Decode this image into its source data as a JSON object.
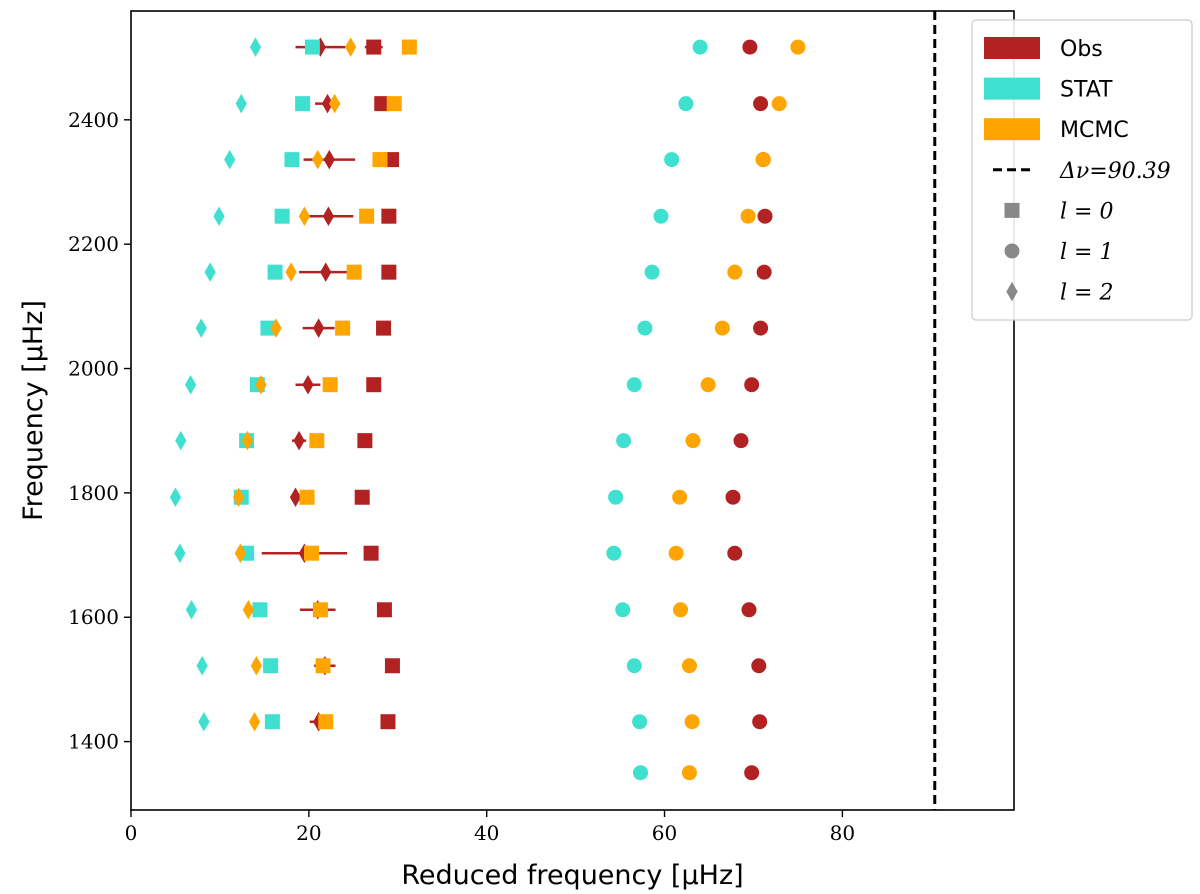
{
  "chart_data": {
    "type": "scatter",
    "xlabel": "Reduced frequency [μHz]",
    "ylabel": "Frequency [μHz]",
    "xlim": [
      0,
      99.3
    ],
    "ylim": [
      1290,
      2575
    ],
    "xticks": [
      0,
      20,
      40,
      60,
      80
    ],
    "yticks": [
      1400,
      1600,
      1800,
      2000,
      2200,
      2400
    ],
    "grid": false,
    "legend_position": "top-right",
    "delta_nu": {
      "value": 90.39,
      "label": "Δν=90.39"
    },
    "colors": {
      "Obs": "#b22222",
      "STAT": "#40e0d0",
      "MCMC": "#ffa500",
      "legend_marker": "#888888"
    },
    "legend": [
      {
        "kind": "patch",
        "name": "Obs",
        "label": "Obs",
        "color": "#b22222"
      },
      {
        "kind": "patch",
        "name": "STAT",
        "label": "STAT",
        "color": "#40e0d0"
      },
      {
        "kind": "patch",
        "name": "MCMC",
        "label": "MCMC",
        "color": "#ffa500"
      },
      {
        "kind": "dash",
        "name": "delta-nu",
        "label": "Δν=90.39"
      },
      {
        "kind": "square",
        "name": "l0",
        "label": "l = 0"
      },
      {
        "kind": "circle",
        "name": "l1",
        "label": "l = 1"
      },
      {
        "kind": "diamond",
        "name": "l2",
        "label": "l = 2"
      }
    ],
    "series": [
      {
        "name": "Obs",
        "l": 0,
        "marker": "square",
        "color": "#b22222",
        "points": [
          {
            "x": 28.9,
            "y": 1432,
            "err": 0
          },
          {
            "x": 29.4,
            "y": 1522,
            "err": 0
          },
          {
            "x": 28.5,
            "y": 1612,
            "err": 0
          },
          {
            "x": 27.0,
            "y": 1703,
            "err": 0
          },
          {
            "x": 26.0,
            "y": 1793,
            "err": 0
          },
          {
            "x": 26.3,
            "y": 1884,
            "err": 0
          },
          {
            "x": 27.3,
            "y": 1974,
            "err": 0
          },
          {
            "x": 28.4,
            "y": 2065,
            "err": 0
          },
          {
            "x": 29.0,
            "y": 2155,
            "err": 0
          },
          {
            "x": 29.0,
            "y": 2245,
            "err": 0.6
          },
          {
            "x": 29.3,
            "y": 2336,
            "err": 0.3
          },
          {
            "x": 28.2,
            "y": 2426,
            "err": 0
          },
          {
            "x": 27.3,
            "y": 2517,
            "err": 1.0
          }
        ]
      },
      {
        "name": "Obs",
        "l": 1,
        "marker": "circle",
        "color": "#b22222",
        "points": [
          {
            "x": 69.8,
            "y": 1350,
            "err": 0
          },
          {
            "x": 70.7,
            "y": 1432,
            "err": 0
          },
          {
            "x": 70.6,
            "y": 1522,
            "err": 0
          },
          {
            "x": 69.5,
            "y": 1612,
            "err": 0
          },
          {
            "x": 67.9,
            "y": 1703,
            "err": 0
          },
          {
            "x": 67.7,
            "y": 1793,
            "err": 0
          },
          {
            "x": 68.6,
            "y": 1884,
            "err": 0
          },
          {
            "x": 69.8,
            "y": 1974,
            "err": 0
          },
          {
            "x": 70.8,
            "y": 2065,
            "err": 0
          },
          {
            "x": 71.2,
            "y": 2155,
            "err": 0
          },
          {
            "x": 71.3,
            "y": 2245,
            "err": 0
          },
          {
            "x": 71.1,
            "y": 2336,
            "err": 0
          },
          {
            "x": 70.8,
            "y": 2426,
            "err": 0
          },
          {
            "x": 69.6,
            "y": 2517,
            "err": 0.5
          }
        ]
      },
      {
        "name": "Obs",
        "l": 2,
        "marker": "diamond",
        "color": "#b22222",
        "points": [
          {
            "x": 21.1,
            "y": 1432,
            "err": 1.0
          },
          {
            "x": 21.8,
            "y": 1522,
            "err": 1.2
          },
          {
            "x": 21.0,
            "y": 1612,
            "err": 2.0
          },
          {
            "x": 19.5,
            "y": 1703,
            "err": 4.8
          },
          {
            "x": 18.5,
            "y": 1793,
            "err": 0.4
          },
          {
            "x": 18.9,
            "y": 1884,
            "err": 0.8
          },
          {
            "x": 19.9,
            "y": 1974,
            "err": 1.4
          },
          {
            "x": 21.1,
            "y": 2065,
            "err": 1.8
          },
          {
            "x": 21.9,
            "y": 2155,
            "err": 3.0
          },
          {
            "x": 22.2,
            "y": 2245,
            "err": 2.8
          },
          {
            "x": 22.3,
            "y": 2336,
            "err": 2.9
          },
          {
            "x": 22.1,
            "y": 2426,
            "err": 1.4
          },
          {
            "x": 21.3,
            "y": 2517,
            "err": 2.8
          }
        ]
      },
      {
        "name": "STAT",
        "l": 0,
        "marker": "square",
        "color": "#40e0d0",
        "points": [
          {
            "x": 15.9,
            "y": 1432
          },
          {
            "x": 15.7,
            "y": 1522
          },
          {
            "x": 14.5,
            "y": 1612
          },
          {
            "x": 13.0,
            "y": 1703
          },
          {
            "x": 12.4,
            "y": 1793
          },
          {
            "x": 13.0,
            "y": 1884
          },
          {
            "x": 14.2,
            "y": 1974
          },
          {
            "x": 15.4,
            "y": 2065
          },
          {
            "x": 16.2,
            "y": 2155
          },
          {
            "x": 17.0,
            "y": 2245
          },
          {
            "x": 18.1,
            "y": 2336
          },
          {
            "x": 19.3,
            "y": 2426
          },
          {
            "x": 20.4,
            "y": 2517
          }
        ]
      },
      {
        "name": "STAT",
        "l": 1,
        "marker": "circle",
        "color": "#40e0d0",
        "points": [
          {
            "x": 57.3,
            "y": 1350
          },
          {
            "x": 57.2,
            "y": 1432
          },
          {
            "x": 56.6,
            "y": 1522
          },
          {
            "x": 55.3,
            "y": 1612
          },
          {
            "x": 54.3,
            "y": 1703
          },
          {
            "x": 54.5,
            "y": 1793
          },
          {
            "x": 55.4,
            "y": 1884
          },
          {
            "x": 56.6,
            "y": 1974
          },
          {
            "x": 57.8,
            "y": 2065
          },
          {
            "x": 58.6,
            "y": 2155
          },
          {
            "x": 59.6,
            "y": 2245
          },
          {
            "x": 60.8,
            "y": 2336
          },
          {
            "x": 62.4,
            "y": 2426
          },
          {
            "x": 64.0,
            "y": 2517
          }
        ]
      },
      {
        "name": "STAT",
        "l": 2,
        "marker": "diamond",
        "color": "#40e0d0",
        "points": [
          {
            "x": 8.2,
            "y": 1432
          },
          {
            "x": 8.0,
            "y": 1522
          },
          {
            "x": 6.8,
            "y": 1612
          },
          {
            "x": 5.5,
            "y": 1703
          },
          {
            "x": 5.0,
            "y": 1793
          },
          {
            "x": 5.6,
            "y": 1884
          },
          {
            "x": 6.7,
            "y": 1974
          },
          {
            "x": 7.9,
            "y": 2065
          },
          {
            "x": 8.9,
            "y": 2155
          },
          {
            "x": 9.9,
            "y": 2245
          },
          {
            "x": 11.1,
            "y": 2336
          },
          {
            "x": 12.4,
            "y": 2426
          },
          {
            "x": 14.0,
            "y": 2517
          }
        ]
      },
      {
        "name": "MCMC",
        "l": 0,
        "marker": "square",
        "color": "#ffa500",
        "points": [
          {
            "x": 21.9,
            "y": 1432
          },
          {
            "x": 21.6,
            "y": 1522
          },
          {
            "x": 21.3,
            "y": 1612
          },
          {
            "x": 20.3,
            "y": 1703
          },
          {
            "x": 19.8,
            "y": 1793
          },
          {
            "x": 20.9,
            "y": 1884
          },
          {
            "x": 22.4,
            "y": 1974
          },
          {
            "x": 23.8,
            "y": 2065
          },
          {
            "x": 25.1,
            "y": 2155
          },
          {
            "x": 26.5,
            "y": 2245
          },
          {
            "x": 28.0,
            "y": 2336
          },
          {
            "x": 29.6,
            "y": 2426
          },
          {
            "x": 31.3,
            "y": 2517
          }
        ]
      },
      {
        "name": "MCMC",
        "l": 1,
        "marker": "circle",
        "color": "#ffa500",
        "points": [
          {
            "x": 62.8,
            "y": 1350
          },
          {
            "x": 63.1,
            "y": 1432
          },
          {
            "x": 62.8,
            "y": 1522
          },
          {
            "x": 61.8,
            "y": 1612
          },
          {
            "x": 61.3,
            "y": 1703
          },
          {
            "x": 61.7,
            "y": 1793
          },
          {
            "x": 63.2,
            "y": 1884
          },
          {
            "x": 64.9,
            "y": 1974
          },
          {
            "x": 66.5,
            "y": 2065
          },
          {
            "x": 67.9,
            "y": 2155
          },
          {
            "x": 69.4,
            "y": 2245
          },
          {
            "x": 71.1,
            "y": 2336
          },
          {
            "x": 72.9,
            "y": 2426
          },
          {
            "x": 75.0,
            "y": 2517
          }
        ]
      },
      {
        "name": "MCMC",
        "l": 2,
        "marker": "diamond",
        "color": "#ffa500",
        "points": [
          {
            "x": 13.9,
            "y": 1432
          },
          {
            "x": 14.1,
            "y": 1522
          },
          {
            "x": 13.2,
            "y": 1612
          },
          {
            "x": 12.3,
            "y": 1703
          },
          {
            "x": 12.1,
            "y": 1793
          },
          {
            "x": 13.1,
            "y": 1884
          },
          {
            "x": 14.6,
            "y": 1974
          },
          {
            "x": 16.3,
            "y": 2065
          },
          {
            "x": 18.0,
            "y": 2155
          },
          {
            "x": 19.5,
            "y": 2245
          },
          {
            "x": 21.0,
            "y": 2336
          },
          {
            "x": 22.9,
            "y": 2426
          },
          {
            "x": 24.7,
            "y": 2517
          }
        ]
      }
    ]
  }
}
